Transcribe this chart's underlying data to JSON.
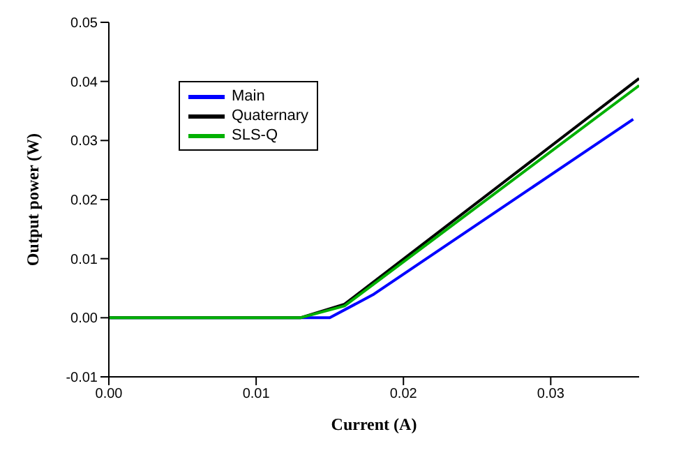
{
  "chart_data": {
    "type": "line",
    "xlabel": "Current (A)",
    "ylabel": "Output power (W)",
    "xlim": [
      0,
      0.036
    ],
    "ylim": [
      -0.01,
      0.05
    ],
    "xticks": [
      {
        "value": 0,
        "label": "0.00"
      },
      0.01,
      0.02,
      0.03
    ],
    "yticks": [
      -0.01,
      {
        "value": 0,
        "label": "0.00"
      },
      0.01,
      0.02,
      0.03,
      0.04,
      0.05
    ],
    "legend": "top left",
    "grid": false,
    "marker": "none",
    "line_style": "solid",
    "series": [
      {
        "name": "Main",
        "color": "#0000ff",
        "x": [
          0,
          0.015,
          0.018,
          0.0356
        ],
        "values": [
          0,
          0,
          0.004,
          0.0336
        ]
      },
      {
        "name": "Quaternary",
        "color": "#000000",
        "x": [
          0,
          0.013,
          0.016,
          0.036
        ],
        "values": [
          0,
          0,
          0.0023,
          0.0405
        ]
      },
      {
        "name": "SLS-Q",
        "color": "#00b000",
        "x": [
          0,
          0.013,
          0.016,
          0.036
        ],
        "values": [
          0,
          0,
          0.002,
          0.0393
        ]
      }
    ]
  }
}
